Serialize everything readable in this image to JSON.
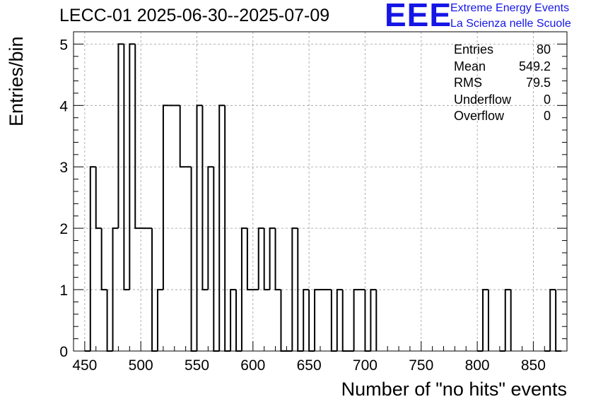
{
  "title": "LECC-01 2025-06-30--2025-07-09",
  "logo": {
    "text": "EEE",
    "line1": "Extreme Energy Events",
    "line2": "La Scienza nelle Scuole",
    "color": "#1515e6"
  },
  "stats": [
    {
      "label": "Entries",
      "value": "80"
    },
    {
      "label": "Mean",
      "value": "549.2"
    },
    {
      "label": "RMS",
      "value": "79.5"
    },
    {
      "label": "Underflow",
      "value": "0"
    },
    {
      "label": "Overflow",
      "value": "0"
    }
  ],
  "chart_data": {
    "type": "bar",
    "style": "step-histogram",
    "title": "LECC-01 2025-06-30--2025-07-09",
    "xlabel": "Number of \"no hits\" events",
    "ylabel": "Entries/bin",
    "xlim": [
      440,
      880
    ],
    "ylim": [
      0,
      5.2
    ],
    "xticks": [
      450,
      500,
      550,
      600,
      650,
      700,
      750,
      800,
      850
    ],
    "yticks": [
      0,
      1,
      2,
      3,
      4,
      5
    ],
    "grid": true,
    "bin_width": 5,
    "bins": [
      {
        "x": 450,
        "y": 0
      },
      {
        "x": 455,
        "y": 3
      },
      {
        "x": 460,
        "y": 2
      },
      {
        "x": 465,
        "y": 1
      },
      {
        "x": 470,
        "y": 0
      },
      {
        "x": 475,
        "y": 2
      },
      {
        "x": 480,
        "y": 5
      },
      {
        "x": 485,
        "y": 1
      },
      {
        "x": 490,
        "y": 5
      },
      {
        "x": 495,
        "y": 2
      },
      {
        "x": 500,
        "y": 2
      },
      {
        "x": 505,
        "y": 2
      },
      {
        "x": 510,
        "y": 0
      },
      {
        "x": 515,
        "y": 1
      },
      {
        "x": 520,
        "y": 4
      },
      {
        "x": 525,
        "y": 4
      },
      {
        "x": 530,
        "y": 4
      },
      {
        "x": 535,
        "y": 3
      },
      {
        "x": 540,
        "y": 3
      },
      {
        "x": 545,
        "y": 0
      },
      {
        "x": 550,
        "y": 4
      },
      {
        "x": 555,
        "y": 1
      },
      {
        "x": 560,
        "y": 3
      },
      {
        "x": 565,
        "y": 0
      },
      {
        "x": 570,
        "y": 4
      },
      {
        "x": 575,
        "y": 0
      },
      {
        "x": 580,
        "y": 1
      },
      {
        "x": 585,
        "y": 0
      },
      {
        "x": 590,
        "y": 2
      },
      {
        "x": 595,
        "y": 1
      },
      {
        "x": 600,
        "y": 1
      },
      {
        "x": 605,
        "y": 2
      },
      {
        "x": 610,
        "y": 1
      },
      {
        "x": 615,
        "y": 2
      },
      {
        "x": 620,
        "y": 1
      },
      {
        "x": 625,
        "y": 0
      },
      {
        "x": 630,
        "y": 0
      },
      {
        "x": 635,
        "y": 2
      },
      {
        "x": 640,
        "y": 0
      },
      {
        "x": 645,
        "y": 1
      },
      {
        "x": 650,
        "y": 0
      },
      {
        "x": 655,
        "y": 1
      },
      {
        "x": 660,
        "y": 1
      },
      {
        "x": 665,
        "y": 1
      },
      {
        "x": 670,
        "y": 0
      },
      {
        "x": 675,
        "y": 1
      },
      {
        "x": 680,
        "y": 0
      },
      {
        "x": 685,
        "y": 0
      },
      {
        "x": 690,
        "y": 1
      },
      {
        "x": 695,
        "y": 1
      },
      {
        "x": 700,
        "y": 0
      },
      {
        "x": 705,
        "y": 1
      },
      {
        "x": 800,
        "y": 0
      },
      {
        "x": 805,
        "y": 1
      },
      {
        "x": 820,
        "y": 0
      },
      {
        "x": 825,
        "y": 1
      },
      {
        "x": 860,
        "y": 0
      },
      {
        "x": 865,
        "y": 1
      },
      {
        "x": 870,
        "y": 0
      }
    ]
  }
}
